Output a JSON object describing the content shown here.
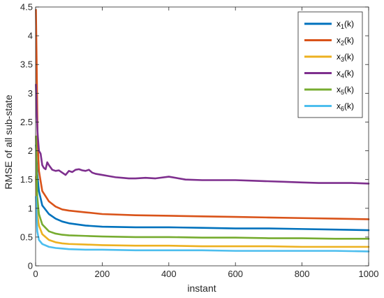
{
  "chart_data": {
    "type": "line",
    "xlabel": "instant",
    "ylabel": "RMSE of all sub-state",
    "xlim": [
      0,
      1000
    ],
    "ylim": [
      0,
      4.5
    ],
    "xticks": [
      0,
      200,
      400,
      600,
      800,
      1000
    ],
    "xtick_labels": [
      "0",
      "200",
      "400",
      "600",
      "800",
      "1000"
    ],
    "yticks": [
      0,
      0.5,
      1,
      1.5,
      2,
      2.5,
      3,
      3.5,
      4,
      4.5
    ],
    "ytick_labels": [
      "0",
      "0.5",
      "1",
      "1.5",
      "2",
      "2.5",
      "3",
      "3.5",
      "4",
      "4.5"
    ],
    "grid": false,
    "legend_position": "top-right",
    "series": [
      {
        "name": "x1(k)",
        "label_base": "x",
        "label_sub": "1",
        "label_suffix": "(k)",
        "color": "#0072BD",
        "x": [
          1,
          5,
          10,
          20,
          40,
          60,
          80,
          100,
          150,
          200,
          300,
          400,
          500,
          600,
          700,
          800,
          900,
          1000
        ],
        "y": [
          2.1,
          1.6,
          1.3,
          1.05,
          0.9,
          0.82,
          0.77,
          0.74,
          0.7,
          0.68,
          0.67,
          0.67,
          0.66,
          0.65,
          0.65,
          0.64,
          0.63,
          0.62
        ]
      },
      {
        "name": "x2(k)",
        "label_base": "x",
        "label_sub": "2",
        "label_suffix": "(k)",
        "color": "#D95319",
        "x": [
          1,
          3,
          6,
          10,
          20,
          40,
          60,
          80,
          100,
          150,
          200,
          300,
          400,
          500,
          600,
          700,
          800,
          900,
          1000
        ],
        "y": [
          4.45,
          3.6,
          2.2,
          1.65,
          1.3,
          1.12,
          1.03,
          0.98,
          0.96,
          0.93,
          0.9,
          0.88,
          0.87,
          0.86,
          0.85,
          0.84,
          0.83,
          0.82,
          0.81
        ]
      },
      {
        "name": "x3(k)",
        "label_base": "x",
        "label_sub": "3",
        "label_suffix": "(k)",
        "color": "#EDB120",
        "x": [
          1,
          5,
          10,
          20,
          40,
          60,
          80,
          100,
          150,
          200,
          300,
          400,
          500,
          600,
          700,
          800,
          900,
          1000
        ],
        "y": [
          1.55,
          0.9,
          0.7,
          0.55,
          0.45,
          0.41,
          0.39,
          0.38,
          0.37,
          0.36,
          0.35,
          0.35,
          0.34,
          0.34,
          0.34,
          0.33,
          0.33,
          0.33
        ]
      },
      {
        "name": "x4(k)",
        "label_base": "x",
        "label_sub": "4",
        "label_suffix": "(k)",
        "color": "#7E2F8E",
        "x": [
          1,
          3,
          6,
          10,
          15,
          20,
          25,
          30,
          35,
          40,
          50,
          60,
          70,
          80,
          90,
          100,
          110,
          120,
          130,
          140,
          150,
          160,
          170,
          180,
          200,
          220,
          240,
          260,
          280,
          300,
          330,
          360,
          400,
          450,
          500,
          550,
          600,
          650,
          700,
          750,
          800,
          850,
          900,
          950,
          1000
        ],
        "y": [
          3.15,
          2.7,
          2.3,
          2.0,
          1.95,
          1.75,
          1.7,
          1.68,
          1.8,
          1.75,
          1.67,
          1.65,
          1.66,
          1.62,
          1.58,
          1.65,
          1.63,
          1.67,
          1.68,
          1.66,
          1.65,
          1.67,
          1.62,
          1.6,
          1.58,
          1.56,
          1.54,
          1.53,
          1.52,
          1.52,
          1.53,
          1.52,
          1.55,
          1.5,
          1.49,
          1.49,
          1.49,
          1.48,
          1.47,
          1.46,
          1.45,
          1.44,
          1.44,
          1.44,
          1.43
        ]
      },
      {
        "name": "x5(k)",
        "label_base": "x",
        "label_sub": "5",
        "label_suffix": "(k)",
        "color": "#77AC30",
        "x": [
          1,
          5,
          10,
          20,
          40,
          60,
          80,
          100,
          150,
          200,
          300,
          400,
          500,
          600,
          700,
          800,
          900,
          1000
        ],
        "y": [
          2.25,
          1.2,
          0.9,
          0.72,
          0.6,
          0.56,
          0.54,
          0.53,
          0.52,
          0.51,
          0.5,
          0.5,
          0.49,
          0.49,
          0.48,
          0.48,
          0.47,
          0.47
        ]
      },
      {
        "name": "x6(k)",
        "label_base": "x",
        "label_sub": "6",
        "label_suffix": "(k)",
        "color": "#4DBEEE",
        "x": [
          1,
          5,
          10,
          20,
          40,
          60,
          80,
          100,
          150,
          200,
          300,
          400,
          500,
          600,
          700,
          800,
          900,
          1000
        ],
        "y": [
          1.2,
          0.6,
          0.45,
          0.38,
          0.33,
          0.31,
          0.3,
          0.29,
          0.28,
          0.28,
          0.27,
          0.27,
          0.27,
          0.26,
          0.26,
          0.26,
          0.26,
          0.25
        ]
      }
    ]
  }
}
